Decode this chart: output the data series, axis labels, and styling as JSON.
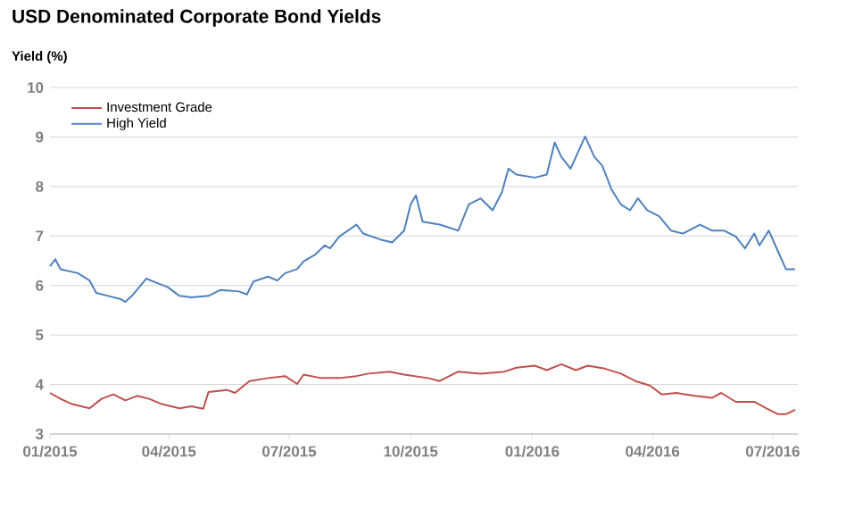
{
  "chart_data": {
    "type": "line",
    "title": "USD Denominated Corporate Bond Yields",
    "ylabel": "Yield (%)",
    "xlim": [
      "2015-01-01",
      "2016-07-20"
    ],
    "ylim": [
      3,
      10
    ],
    "yticks": [
      3,
      4,
      5,
      6,
      7,
      8,
      9,
      10
    ],
    "xticks": [
      {
        "value": "2015-01-01",
        "label": "01/2015"
      },
      {
        "value": "2015-04-01",
        "label": "04/2015"
      },
      {
        "value": "2015-07-01",
        "label": "07/2015"
      },
      {
        "value": "2015-10-01",
        "label": "10/2015"
      },
      {
        "value": "2016-01-01",
        "label": "01/2016"
      },
      {
        "value": "2016-04-01",
        "label": "04/2016"
      },
      {
        "value": "2016-07-01",
        "label": "07/2016"
      }
    ],
    "grid": "y",
    "legend": "top left",
    "marker": "none",
    "line_style": "solid",
    "series": [
      {
        "name": "Investment Grade",
        "color": "#c0504d",
        "x": [
          "2015-01-01",
          "2015-01-09",
          "2015-01-17",
          "2015-01-31",
          "2015-02-09",
          "2015-02-18",
          "2015-02-27",
          "2015-03-08",
          "2015-03-17",
          "2015-03-26",
          "2015-04-09",
          "2015-04-18",
          "2015-04-27",
          "2015-05-01",
          "2015-05-15",
          "2015-05-21",
          "2015-06-01",
          "2015-06-15",
          "2015-06-28",
          "2015-07-07",
          "2015-07-12",
          "2015-07-25",
          "2015-08-08",
          "2015-08-21",
          "2015-08-30",
          "2015-09-15",
          "2015-09-26",
          "2015-10-14",
          "2015-10-23",
          "2015-11-06",
          "2015-11-23",
          "2015-12-11",
          "2015-12-20",
          "2016-01-03",
          "2016-01-12",
          "2016-01-23",
          "2016-02-03",
          "2016-02-12",
          "2016-02-25",
          "2016-03-08",
          "2016-03-19",
          "2016-03-30",
          "2016-04-08",
          "2016-04-19",
          "2016-05-03",
          "2016-05-16",
          "2016-05-23",
          "2016-06-03",
          "2016-06-17",
          "2016-06-26",
          "2016-07-05",
          "2016-07-11",
          "2016-07-18"
        ],
        "values": [
          3.83,
          3.71,
          3.61,
          3.52,
          3.71,
          3.8,
          3.68,
          3.77,
          3.71,
          3.61,
          3.52,
          3.56,
          3.51,
          3.85,
          3.89,
          3.83,
          4.07,
          4.13,
          4.17,
          4.01,
          4.2,
          4.13,
          4.13,
          4.17,
          4.22,
          4.26,
          4.2,
          4.13,
          4.07,
          4.26,
          4.22,
          4.26,
          4.34,
          4.38,
          4.29,
          4.41,
          4.29,
          4.38,
          4.32,
          4.22,
          4.07,
          3.98,
          3.8,
          3.83,
          3.77,
          3.73,
          3.83,
          3.65,
          3.65,
          3.52,
          3.4,
          3.4,
          3.49
        ]
      },
      {
        "name": "High Yield",
        "color": "#4f81bd",
        "x": [
          "2015-01-01",
          "2015-01-05",
          "2015-01-09",
          "2015-01-22",
          "2015-01-31",
          "2015-02-05",
          "2015-02-14",
          "2015-02-23",
          "2015-02-27",
          "2015-03-04",
          "2015-03-15",
          "2015-03-22",
          "2015-03-31",
          "2015-04-09",
          "2015-04-18",
          "2015-05-01",
          "2015-05-10",
          "2015-05-24",
          "2015-05-30",
          "2015-06-04",
          "2015-06-15",
          "2015-06-22",
          "2015-06-28",
          "2015-07-07",
          "2015-07-12",
          "2015-07-21",
          "2015-07-28",
          "2015-08-01",
          "2015-08-08",
          "2015-08-21",
          "2015-08-26",
          "2015-09-08",
          "2015-09-17",
          "2015-09-26",
          "2015-10-01",
          "2015-10-05",
          "2015-10-10",
          "2015-10-23",
          "2015-11-06",
          "2015-11-14",
          "2015-11-23",
          "2015-12-02",
          "2015-12-09",
          "2015-12-14",
          "2015-12-20",
          "2016-01-03",
          "2016-01-12",
          "2016-01-18",
          "2016-01-23",
          "2016-01-30",
          "2016-02-10",
          "2016-02-17",
          "2016-02-23",
          "2016-03-01",
          "2016-03-08",
          "2016-03-15",
          "2016-03-21",
          "2016-03-28",
          "2016-04-06",
          "2016-04-15",
          "2016-04-24",
          "2016-05-07",
          "2016-05-16",
          "2016-05-25",
          "2016-06-03",
          "2016-06-10",
          "2016-06-17",
          "2016-06-21",
          "2016-06-28",
          "2016-07-05",
          "2016-07-11",
          "2016-07-18"
        ],
        "values": [
          6.39,
          6.53,
          6.33,
          6.25,
          6.1,
          5.85,
          5.79,
          5.73,
          5.67,
          5.79,
          6.14,
          6.06,
          5.97,
          5.79,
          5.76,
          5.79,
          5.91,
          5.88,
          5.82,
          6.08,
          6.18,
          6.1,
          6.25,
          6.33,
          6.49,
          6.63,
          6.81,
          6.75,
          6.99,
          7.23,
          7.05,
          6.93,
          6.87,
          7.11,
          7.64,
          7.82,
          7.29,
          7.23,
          7.11,
          7.64,
          7.76,
          7.52,
          7.88,
          8.36,
          8.24,
          8.18,
          8.24,
          8.89,
          8.6,
          8.36,
          9.01,
          8.6,
          8.42,
          7.94,
          7.64,
          7.52,
          7.76,
          7.52,
          7.4,
          7.11,
          7.05,
          7.23,
          7.11,
          7.11,
          6.99,
          6.75,
          7.05,
          6.81,
          7.11,
          6.69,
          6.33,
          6.33
        ]
      }
    ]
  }
}
